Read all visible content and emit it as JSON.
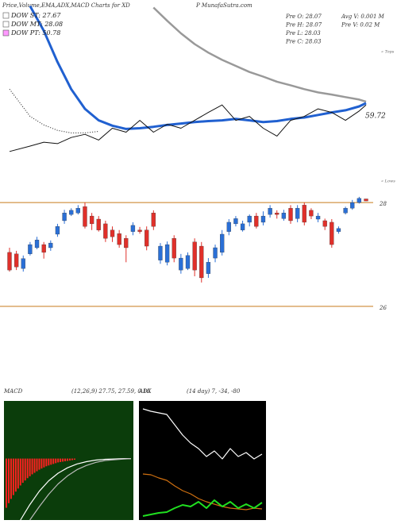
{
  "header": {
    "title": "Price,Volume,EMA,ADX,MACD Charts for XD",
    "site": "P MunafaSutra.com"
  },
  "stats": [
    "Pre O: 28.07",
    "Pre H: 28.07",
    "Pre L: 28.03",
    "Pre C: 28.03",
    "Avg V: 0.001 M",
    "Pre V: 0.02 M"
  ],
  "chart_data": [
    {
      "type": "candlestick",
      "xlim": [
        0,
        52
      ],
      "ylim": [
        25.8,
        28.2
      ],
      "yticks": [
        26,
        28
      ],
      "grid": true,
      "grid_color": "#c87a1a",
      "up_color": "#2a6fd6",
      "down_color": "#e0302a",
      "open": [
        27.04,
        27.01,
        26.73,
        27.01,
        27.13,
        27.19,
        27.13,
        27.39,
        27.65,
        27.77,
        27.8,
        27.92,
        27.74,
        27.68,
        27.59,
        27.47,
        27.4,
        27.31,
        27.44,
        27.47,
        27.47,
        27.8,
        26.89,
        26.85,
        27.31,
        26.7,
        26.73,
        27.24,
        27.16,
        26.63,
        26.93,
        27.04,
        27.44,
        27.59,
        27.47,
        27.62,
        27.74,
        27.62,
        27.77,
        27.8,
        27.69,
        27.89,
        27.69,
        27.95,
        27.85,
        27.68,
        27.65,
        27.62,
        27.44,
        27.8,
        27.89,
        28.0,
        28.07
      ],
      "high": [
        27.13,
        27.07,
        26.98,
        27.24,
        27.34,
        27.24,
        27.27,
        27.59,
        27.86,
        27.89,
        27.95,
        28.0,
        27.8,
        27.74,
        27.65,
        27.54,
        27.47,
        27.37,
        27.62,
        27.53,
        27.54,
        27.85,
        27.22,
        27.25,
        27.37,
        27.01,
        27.04,
        27.31,
        27.24,
        26.93,
        27.19,
        27.47,
        27.68,
        27.74,
        27.65,
        27.77,
        27.8,
        27.83,
        27.95,
        27.85,
        27.86,
        27.95,
        27.95,
        28.0,
        27.89,
        27.8,
        27.69,
        27.68,
        27.54,
        27.92,
        28.05,
        28.11,
        28.07
      ],
      "low": [
        26.67,
        26.7,
        26.67,
        26.98,
        27.1,
        26.92,
        27.07,
        27.34,
        27.59,
        27.74,
        27.77,
        27.5,
        27.47,
        27.44,
        27.24,
        27.24,
        27.13,
        26.85,
        27.37,
        27.4,
        27.08,
        27.47,
        26.82,
        26.79,
        26.85,
        26.63,
        26.7,
        26.58,
        26.46,
        26.55,
        26.85,
        26.98,
        27.37,
        27.54,
        27.44,
        27.54,
        27.5,
        27.56,
        27.71,
        27.69,
        27.65,
        27.59,
        27.62,
        27.56,
        27.68,
        27.62,
        27.47,
        27.13,
        27.4,
        27.77,
        27.86,
        27.98,
        28.03
      ],
      "close": [
        26.7,
        26.76,
        26.92,
        27.19,
        27.28,
        27.04,
        27.22,
        27.54,
        27.8,
        27.85,
        27.89,
        27.54,
        27.59,
        27.47,
        27.31,
        27.34,
        27.19,
        27.13,
        27.56,
        27.44,
        27.16,
        27.54,
        27.16,
        27.19,
        26.93,
        26.93,
        26.98,
        26.7,
        26.55,
        26.85,
        27.13,
        27.39,
        27.62,
        27.69,
        27.59,
        27.74,
        27.54,
        27.74,
        27.89,
        27.77,
        27.8,
        27.65,
        27.89,
        27.62,
        27.74,
        27.74,
        27.54,
        27.19,
        27.5,
        27.89,
        28.0,
        28.08,
        28.03
      ]
    },
    {
      "type": "line",
      "xlim": [
        0,
        52
      ],
      "ylim": [
        40,
        91
      ],
      "x": [
        0,
        3,
        5,
        7,
        9,
        11,
        13,
        15,
        17,
        19,
        21,
        23,
        25,
        27,
        29,
        31,
        33,
        35,
        37,
        39,
        41,
        43,
        45,
        47,
        49,
        51,
        52
      ],
      "series": [
        {
          "color": "#999999",
          "width": 2.5,
          "values": [
            null,
            null,
            null,
            null,
            null,
            null,
            null,
            null,
            null,
            null,
            90.0,
            86.3,
            82.8,
            79.8,
            77.4,
            75.4,
            73.7,
            72.0,
            70.7,
            69.3,
            68.3,
            67.2,
            66.3,
            65.7,
            65.0,
            64.3,
            63.7
          ]
        },
        {
          "color": "#111111",
          "width": 1,
          "dash": "1,2",
          "values": [
            67.2,
            59.6,
            57.2,
            55.7,
            55.0,
            55.0,
            55.4,
            null,
            null,
            null,
            null,
            null,
            null,
            null,
            null,
            null,
            null,
            null,
            null,
            null,
            null,
            null,
            null,
            null,
            null,
            null,
            null
          ]
        },
        {
          "color": "#2060d0",
          "width": 3,
          "values": [
            null,
            90.4,
            83.5,
            74.8,
            67.2,
            61.7,
            58.5,
            57.0,
            56.1,
            56.3,
            56.7,
            57.2,
            57.6,
            58.0,
            58.3,
            58.5,
            58.9,
            58.5,
            58.0,
            58.3,
            58.9,
            59.3,
            60.0,
            60.7,
            61.3,
            62.4,
            63.3
          ]
        },
        {
          "color": "#111111",
          "width": 1,
          "values": [
            49.8,
            51.3,
            52.4,
            52.0,
            53.7,
            54.6,
            53.0,
            56.3,
            55.2,
            58.5,
            55.2,
            57.4,
            56.3,
            58.5,
            60.7,
            62.8,
            58.5,
            59.6,
            56.3,
            54.1,
            58.5,
            59.6,
            61.7,
            60.7,
            58.5,
            61.1,
            62.8
          ]
        }
      ],
      "last_label": 59.72,
      "legend": [
        {
          "label": "DOW ST: 27.67",
          "color": "#ffffff"
        },
        {
          "label": "DOW MT: 28.08",
          "color": "#ffffff"
        },
        {
          "label": "DOW PT: 50.78",
          "color": "#ff99ff"
        }
      ],
      "annotations": [
        "« Tops",
        "« Lows"
      ]
    },
    {
      "type": "macd",
      "title": "MACD",
      "subtitle": "(12,26,9) 27.75, 27.59, 0.16",
      "bg": "#0b3d0b",
      "xlim": [
        0,
        53
      ],
      "ylim": [
        -1.6,
        1.5
      ],
      "bar_color": "#ff2020",
      "histogram": [
        -1.28,
        -1.16,
        -1.05,
        -0.95,
        -0.86,
        -0.78,
        -0.7,
        -0.63,
        -0.57,
        -0.51,
        -0.46,
        -0.41,
        -0.37,
        -0.33,
        -0.29,
        -0.26,
        -0.23,
        -0.2,
        -0.18,
        -0.16,
        -0.14,
        -0.12,
        -0.1,
        -0.09,
        -0.08,
        -0.07,
        -0.06,
        -0.05,
        -0.04,
        -0.03
      ],
      "x": [
        6,
        10,
        14,
        18,
        22,
        26,
        30,
        34,
        38,
        42,
        46,
        50,
        53
      ],
      "series": [
        {
          "color": "#ffffff",
          "width": 1.2,
          "values": [
            -1.6,
            -1.2,
            -0.85,
            -0.58,
            -0.38,
            -0.24,
            -0.14,
            -0.08,
            -0.04,
            -0.02,
            -0.01,
            0.0,
            0.0
          ]
        },
        {
          "color": "#bbbbbb",
          "width": 1.2,
          "values": [
            null,
            -1.6,
            -1.25,
            -0.93,
            -0.66,
            -0.45,
            -0.29,
            -0.18,
            -0.1,
            -0.05,
            -0.03,
            -0.01,
            0.0
          ]
        }
      ]
    },
    {
      "type": "line",
      "title": "ADX",
      "subtitle": "(14 day) 7, -34, -80",
      "bg": "#000000",
      "xlim": [
        0,
        30
      ],
      "ylim": [
        0,
        100
      ],
      "x": [
        0,
        2,
        4,
        6,
        8,
        10,
        12,
        14,
        16,
        18,
        20,
        22,
        24,
        26,
        28,
        30
      ],
      "series": [
        {
          "color": "#ffffff",
          "width": 1.2,
          "values": [
            93.3,
            91.3,
            90.0,
            88.7,
            80.0,
            71.3,
            64.7,
            60.0,
            53.3,
            58.0,
            51.3,
            60.0,
            53.3,
            56.7,
            51.3,
            55.3
          ]
        },
        {
          "color": "#d07010",
          "width": 1.2,
          "values": [
            38.7,
            38.0,
            35.3,
            33.3,
            28.7,
            24.7,
            22.0,
            18.0,
            15.3,
            13.3,
            11.3,
            10.0,
            9.3,
            8.7,
            10.0,
            9.3
          ]
        },
        {
          "color": "#20e020",
          "width": 2,
          "values": [
            3.3,
            4.7,
            6.0,
            6.7,
            10.0,
            12.7,
            11.3,
            15.3,
            10.0,
            16.7,
            11.3,
            15.3,
            10.0,
            13.3,
            10.0,
            14.7
          ]
        }
      ]
    }
  ]
}
